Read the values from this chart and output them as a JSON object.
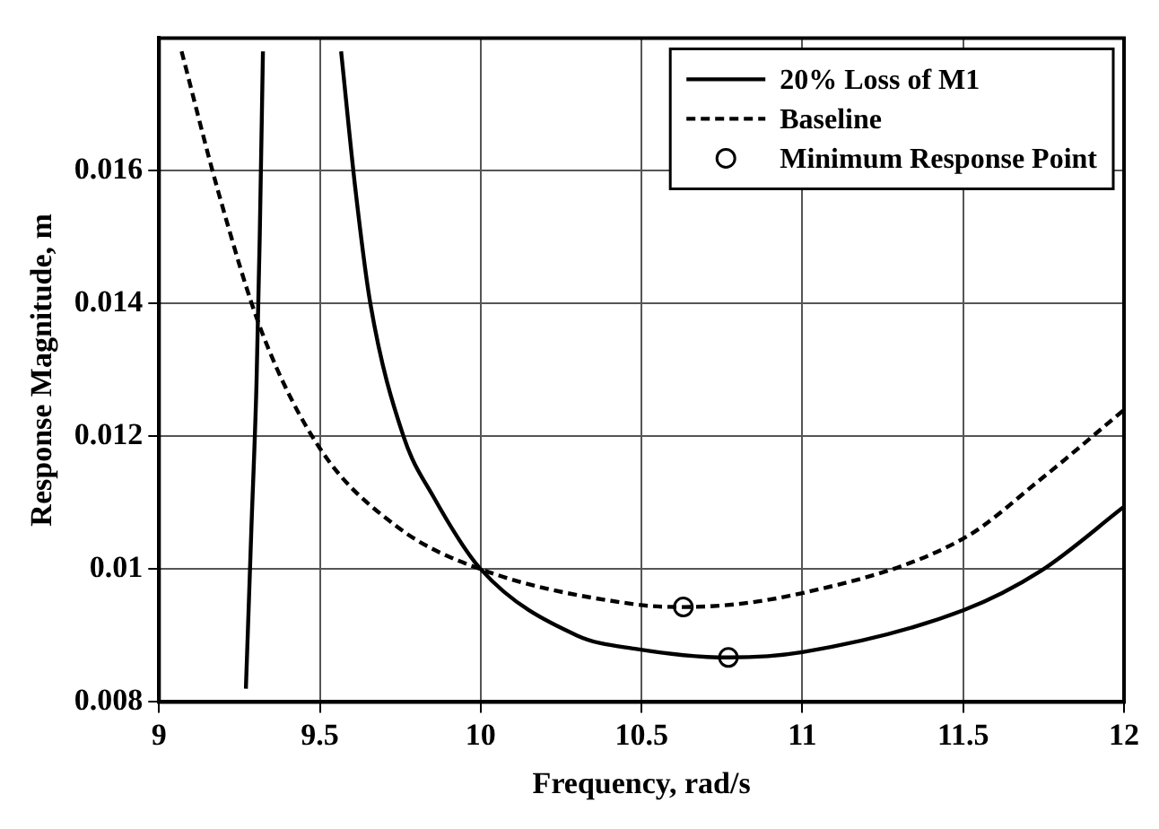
{
  "chart_data": {
    "type": "line",
    "xlabel": "Frequency, rad/s",
    "ylabel": "Response Magnitude, m",
    "xlim": [
      9,
      12
    ],
    "xticks": [
      9,
      9.5,
      10,
      10.5,
      11,
      11.5,
      12
    ],
    "ylim": [
      0.008,
      0.018
    ],
    "yticks": [
      0.008,
      0.01,
      0.012,
      0.014,
      0.016
    ],
    "grid": true,
    "legend": "top right",
    "series": [
      {
        "name": "20% Loss of M1",
        "line_style": "solid",
        "marker": "none",
        "color": "#000000",
        "x": [
          9.27,
          9.287,
          9.303,
          9.313,
          9.323,
          9.45,
          9.566,
          9.611,
          9.657,
          9.76,
          9.852,
          10.0,
          10.3,
          10.48,
          10.77,
          11.0,
          11.5,
          11.74,
          12.0
        ],
        "values": [
          0.0082,
          0.0106,
          0.0128,
          0.015,
          0.0178,
          null,
          0.0178,
          0.0157,
          0.014,
          0.012,
          0.0111,
          0.01,
          0.009,
          0.0088,
          0.00867,
          0.00875,
          0.00938,
          0.00997,
          0.01094
        ]
      },
      {
        "name": "Baseline",
        "line_style": "dashed",
        "marker": "none",
        "color": "#000000",
        "x": [
          9.07,
          9.185,
          9.319,
          9.5,
          9.74,
          10.0,
          10.48,
          10.63,
          11.0,
          11.5,
          11.74,
          12.0
        ],
        "values": [
          0.0178,
          0.01567,
          0.01358,
          0.01182,
          0.01064,
          0.01,
          0.00947,
          0.00943,
          0.00964,
          0.01046,
          0.01135,
          0.0124
        ]
      },
      {
        "name": "Minimum Response Point",
        "type": "scatter",
        "marker": "circle",
        "color": "#000000",
        "x": [
          10.63,
          10.77
        ],
        "values": [
          0.00943,
          0.00867
        ]
      }
    ]
  }
}
